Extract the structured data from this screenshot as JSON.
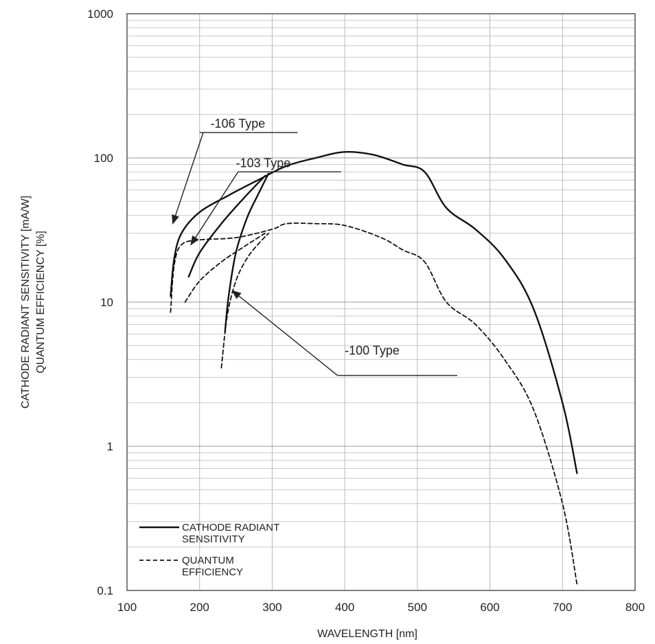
{
  "chart_data": {
    "type": "line",
    "title": "",
    "xlabel": "WAVELENGTH [nm]",
    "ylabel_lines": [
      "CATHODE RADIANT SENSITIVITY [mA/W]",
      "QUANTUM EFFICIENCY [%]"
    ],
    "xlim": [
      100,
      800
    ],
    "ylim": [
      0.1,
      1000
    ],
    "yscale": "log",
    "grid": true,
    "x_ticks": [
      100,
      200,
      300,
      400,
      500,
      600,
      700,
      800
    ],
    "x_tick_labels": [
      "100",
      "200",
      "300",
      "400",
      "500",
      "600",
      "700",
      "800"
    ],
    "y_ticks": [
      0.1,
      1,
      10,
      100,
      1000
    ],
    "y_tick_labels": [
      "0.1",
      "1",
      "10",
      "100",
      "1000"
    ],
    "series": [
      {
        "name": "CATHODE RADIANT SENSITIVITY",
        "dash": "solid",
        "color": "#111111",
        "points": [
          [
            160,
            11
          ],
          [
            165,
            20
          ],
          [
            175,
            30
          ],
          [
            200,
            42
          ],
          [
            240,
            55
          ],
          [
            280,
            70
          ],
          [
            320,
            88
          ],
          [
            360,
            100
          ],
          [
            400,
            110
          ],
          [
            440,
            105
          ],
          [
            480,
            90
          ],
          [
            510,
            80
          ],
          [
            540,
            45
          ],
          [
            580,
            32
          ],
          [
            620,
            20
          ],
          [
            660,
            9
          ],
          [
            700,
            2
          ],
          [
            720,
            0.65
          ]
        ]
      },
      {
        "name": "QUANTUM EFFICIENCY",
        "dash": "dashed",
        "color": "#111111",
        "points": [
          [
            160,
            8.5
          ],
          [
            165,
            18
          ],
          [
            175,
            25
          ],
          [
            200,
            27
          ],
          [
            250,
            28
          ],
          [
            300,
            32
          ],
          [
            320,
            35
          ],
          [
            360,
            35
          ],
          [
            400,
            34
          ],
          [
            450,
            28
          ],
          [
            480,
            23
          ],
          [
            510,
            19
          ],
          [
            540,
            10
          ],
          [
            580,
            7
          ],
          [
            620,
            4
          ],
          [
            660,
            1.8
          ],
          [
            700,
            0.4
          ],
          [
            720,
            0.11
          ]
        ]
      },
      {
        "name": "-103 Type radiant",
        "dash": "solid",
        "color": "#111111",
        "points": [
          [
            185,
            15
          ],
          [
            200,
            22
          ],
          [
            230,
            35
          ],
          [
            260,
            52
          ],
          [
            290,
            75
          ]
        ]
      },
      {
        "name": "-103 Type QE",
        "dash": "dashed",
        "color": "#111111",
        "points": [
          [
            180,
            10
          ],
          [
            200,
            14
          ],
          [
            230,
            19
          ],
          [
            260,
            24
          ],
          [
            290,
            30
          ]
        ]
      },
      {
        "name": "-100 Type radiant",
        "dash": "solid",
        "color": "#111111",
        "points": [
          [
            235,
            6.2
          ],
          [
            240,
            11
          ],
          [
            250,
            22
          ],
          [
            265,
            38
          ],
          [
            280,
            55
          ],
          [
            295,
            78
          ]
        ]
      },
      {
        "name": "-100 Type QE",
        "dash": "dashed",
        "color": "#111111",
        "points": [
          [
            230,
            3.5
          ],
          [
            238,
            8
          ],
          [
            250,
            14
          ],
          [
            265,
            20
          ],
          [
            280,
            25
          ],
          [
            295,
            30
          ]
        ]
      }
    ],
    "annotations": [
      {
        "text": "-106 Type",
        "label_at": [
          215,
          150
        ],
        "underline": [
          [
            200,
            150
          ],
          [
            335,
            150
          ]
        ],
        "arrow_from": [
          205,
          150
        ],
        "arrow_to": [
          163,
          35
        ]
      },
      {
        "text": "-103 Type",
        "label_at": [
          250,
          80
        ],
        "underline": [
          [
            253,
            80
          ],
          [
            395,
            80
          ]
        ],
        "arrow_from": [
          253,
          80
        ],
        "arrow_to": [
          188,
          25
        ]
      },
      {
        "text": "-100 Type",
        "label_at": [
          400,
          4
        ],
        "underline": [
          [
            390,
            3.1
          ],
          [
            555,
            3.1
          ]
        ],
        "arrow_from": [
          390,
          3.1
        ],
        "arrow_to": [
          245,
          12
        ]
      }
    ],
    "legend": {
      "position": "bottom-left",
      "entries": [
        {
          "lines": [
            "CATHODE RADIANT",
            "SENSITIVITY"
          ],
          "dash": "solid"
        },
        {
          "lines": [
            "QUANTUM",
            "EFFICIENCY"
          ],
          "dash": "dashed"
        }
      ]
    }
  }
}
